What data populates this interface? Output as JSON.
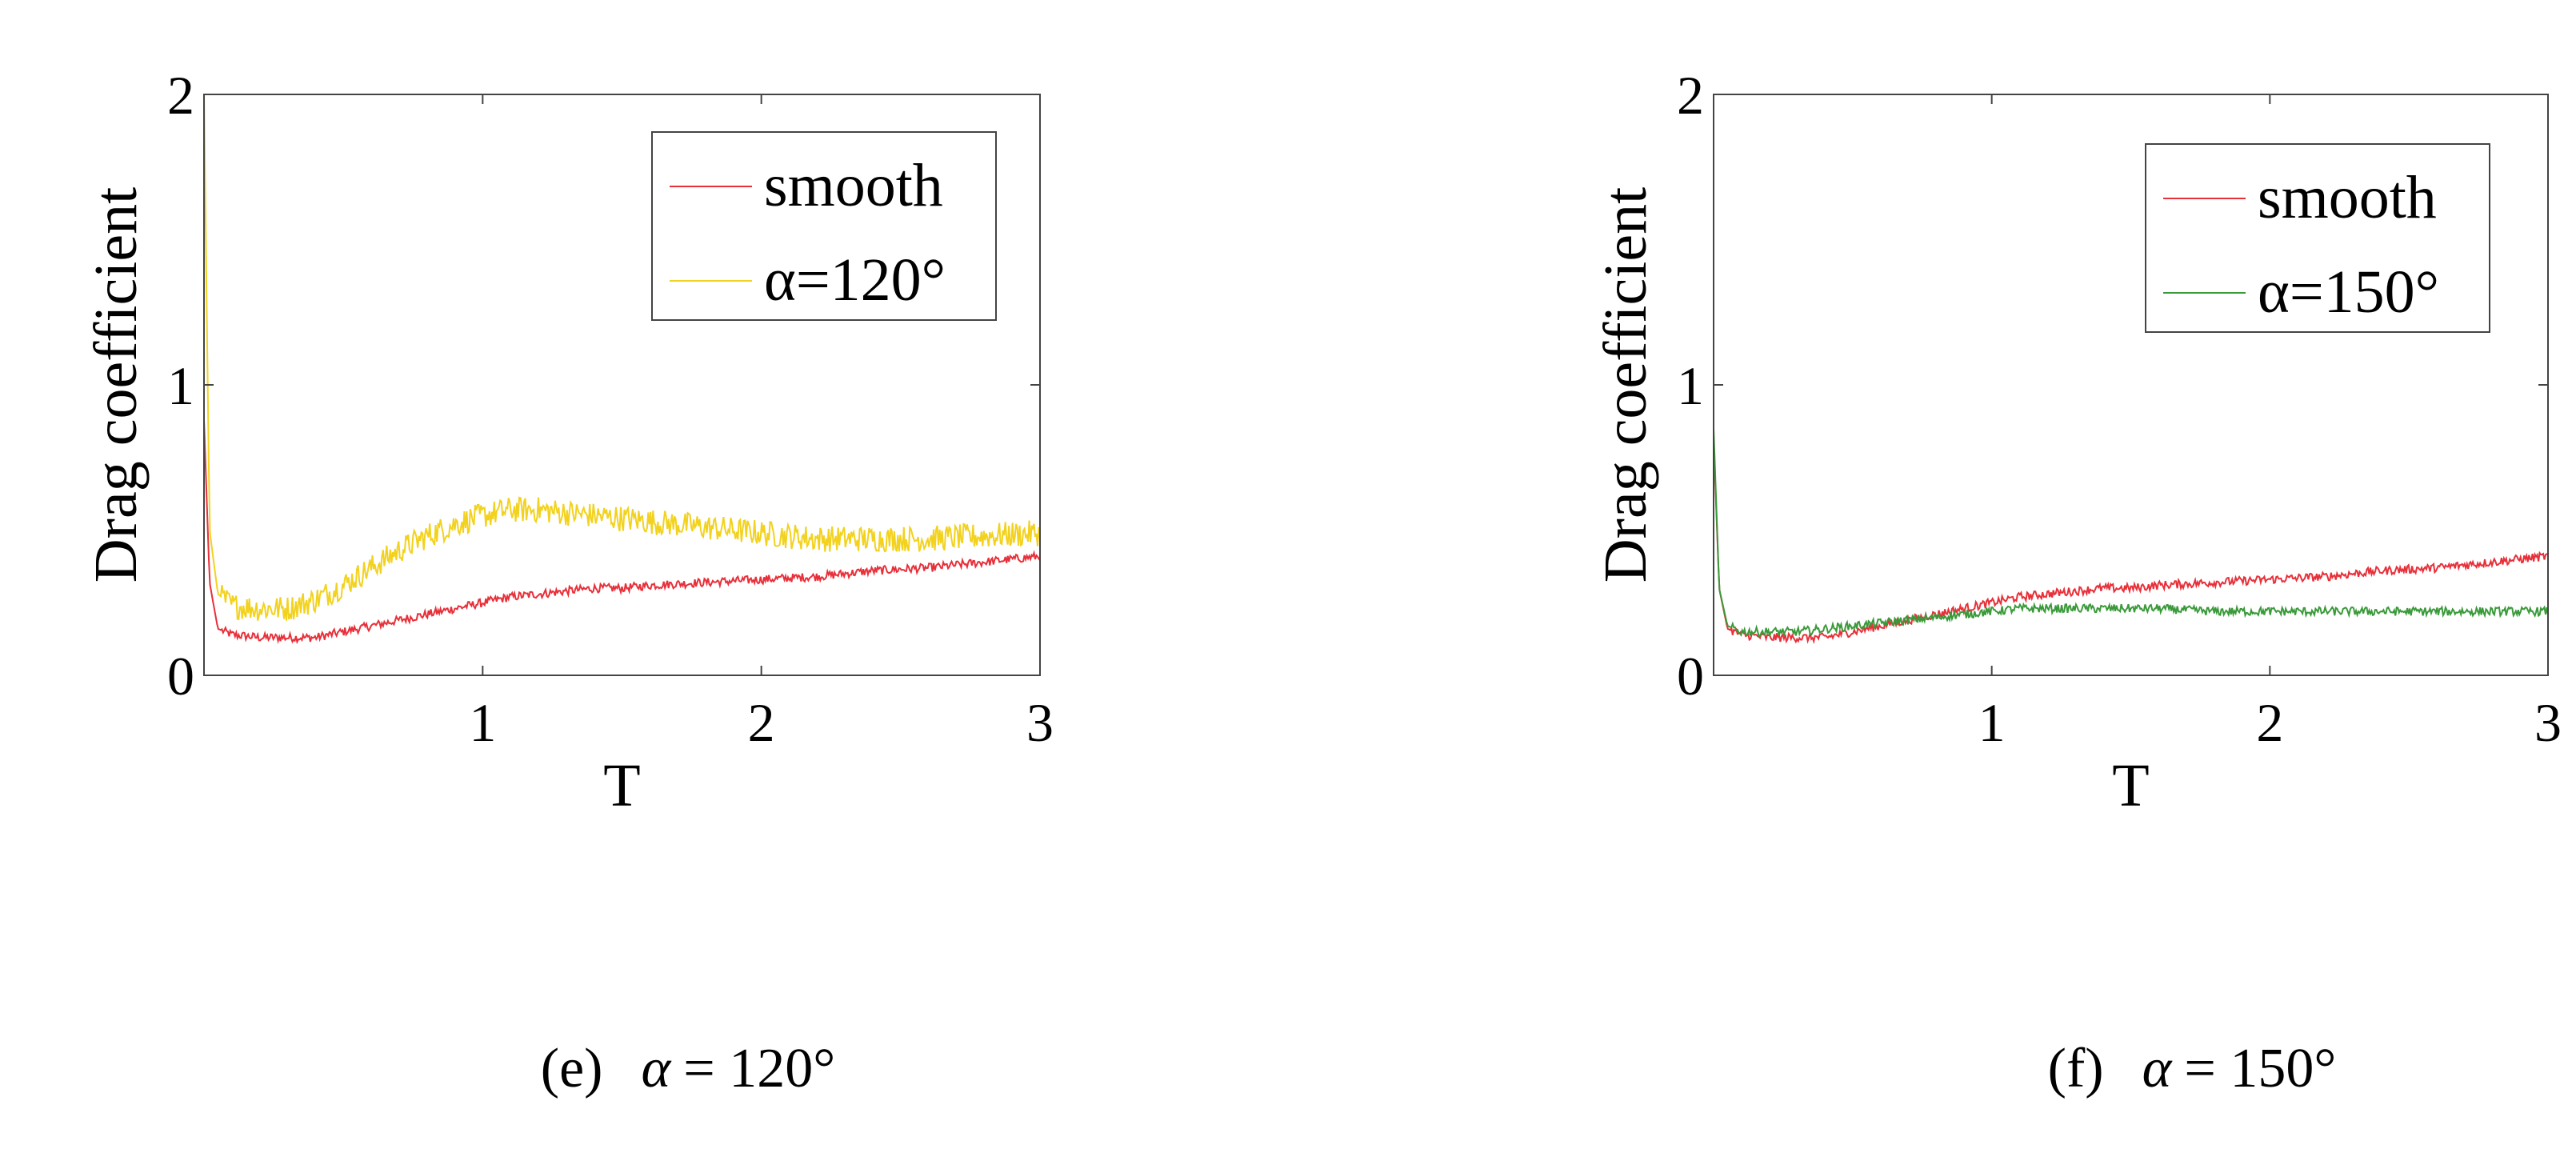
{
  "chart_data": [
    {
      "type": "line",
      "xlabel": "T",
      "ylabel": "Drag coefficient",
      "xlim": [
        0,
        3
      ],
      "ylim": [
        0,
        2
      ],
      "xticks": [
        "1",
        "2",
        "3"
      ],
      "yticks": [
        "0",
        "1",
        "2"
      ],
      "legend_placement": "top-right",
      "grid": false,
      "caption_prefix": "(e)",
      "caption_symbol": "α",
      "caption_value": "= 120°",
      "x": [
        0.0,
        0.02,
        0.05,
        0.1,
        0.2,
        0.3,
        0.4,
        0.5,
        0.6,
        0.7,
        0.8,
        0.9,
        1.0,
        1.1,
        1.2,
        1.3,
        1.4,
        1.5,
        1.6,
        1.8,
        2.0,
        2.2,
        2.4,
        2.6,
        2.8,
        3.0
      ],
      "series": [
        {
          "name": "smooth",
          "color": "#e8303a",
          "noise": 0.015,
          "values": [
            0.88,
            0.32,
            0.16,
            0.14,
            0.13,
            0.13,
            0.13,
            0.15,
            0.17,
            0.19,
            0.21,
            0.23,
            0.25,
            0.27,
            0.28,
            0.29,
            0.3,
            0.3,
            0.31,
            0.32,
            0.33,
            0.34,
            0.36,
            0.37,
            0.39,
            0.41
          ]
        },
        {
          "name": "α=120°",
          "color": "#f2d21e",
          "noise": 0.045,
          "values": [
            2.0,
            0.5,
            0.28,
            0.24,
            0.23,
            0.23,
            0.26,
            0.31,
            0.37,
            0.43,
            0.48,
            0.52,
            0.55,
            0.57,
            0.57,
            0.56,
            0.55,
            0.54,
            0.53,
            0.51,
            0.49,
            0.47,
            0.47,
            0.47,
            0.48,
            0.49
          ]
        }
      ]
    },
    {
      "type": "line",
      "xlabel": "T",
      "ylabel": "Drag coefficient",
      "xlim": [
        0,
        3
      ],
      "ylim": [
        0,
        2
      ],
      "xticks": [
        "1",
        "2",
        "3"
      ],
      "yticks": [
        "0",
        "1",
        "2"
      ],
      "legend_placement": "top-right",
      "grid": false,
      "caption_prefix": "(f)",
      "caption_symbol": "α",
      "caption_value": "= 150°",
      "x": [
        0.0,
        0.02,
        0.05,
        0.1,
        0.2,
        0.3,
        0.4,
        0.5,
        0.6,
        0.7,
        0.8,
        0.9,
        1.0,
        1.1,
        1.2,
        1.3,
        1.4,
        1.5,
        1.6,
        1.8,
        2.0,
        2.2,
        2.4,
        2.6,
        2.8,
        3.0
      ],
      "series": [
        {
          "name": "smooth",
          "color": "#e8303a",
          "noise": 0.015,
          "values": [
            0.82,
            0.3,
            0.16,
            0.14,
            0.13,
            0.13,
            0.13,
            0.15,
            0.17,
            0.19,
            0.21,
            0.23,
            0.25,
            0.27,
            0.28,
            0.29,
            0.3,
            0.3,
            0.31,
            0.32,
            0.33,
            0.34,
            0.36,
            0.37,
            0.39,
            0.41
          ]
        },
        {
          "name": "α=150°",
          "color": "#3a9a3a",
          "noise": 0.015,
          "values": [
            0.85,
            0.3,
            0.17,
            0.15,
            0.15,
            0.15,
            0.16,
            0.17,
            0.18,
            0.19,
            0.2,
            0.21,
            0.22,
            0.23,
            0.23,
            0.23,
            0.23,
            0.23,
            0.23,
            0.22,
            0.22,
            0.22,
            0.22,
            0.22,
            0.22,
            0.22
          ]
        }
      ]
    }
  ]
}
